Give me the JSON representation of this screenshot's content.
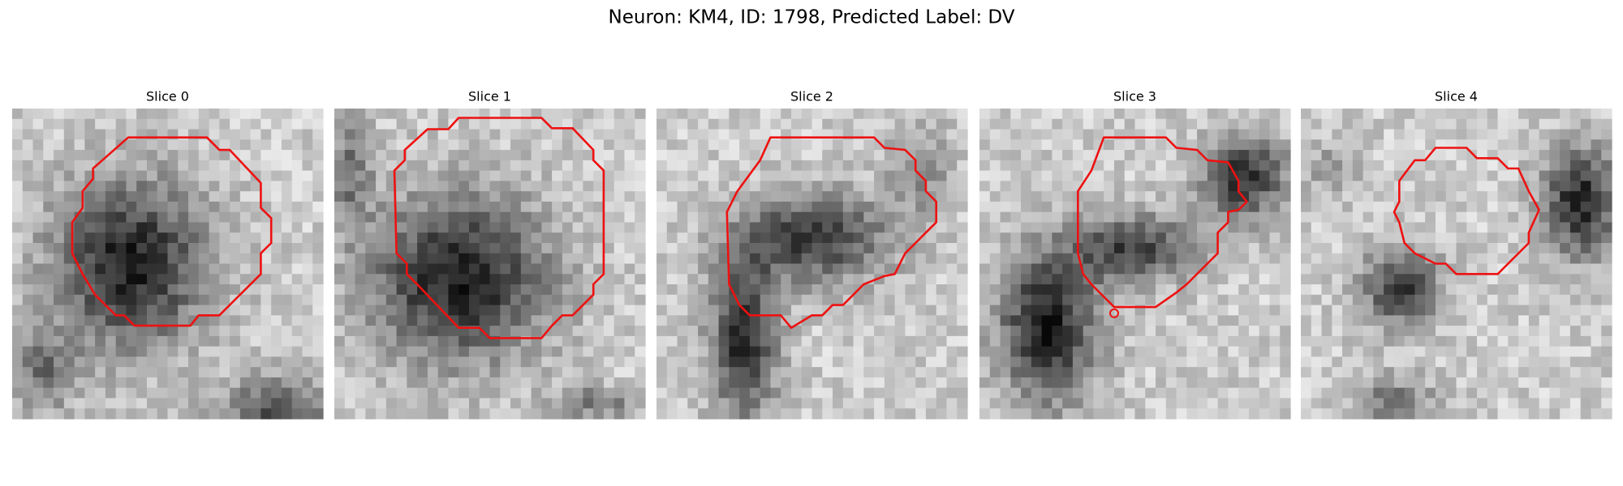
{
  "title": "Neuron: KM4, ID: 1798, Predicted Label: DV",
  "panels": [
    {
      "title": "Slice 0"
    },
    {
      "title": "Slice 1"
    },
    {
      "title": "Slice 2"
    },
    {
      "title": "Slice 3"
    },
    {
      "title": "Slice 4"
    }
  ]
}
